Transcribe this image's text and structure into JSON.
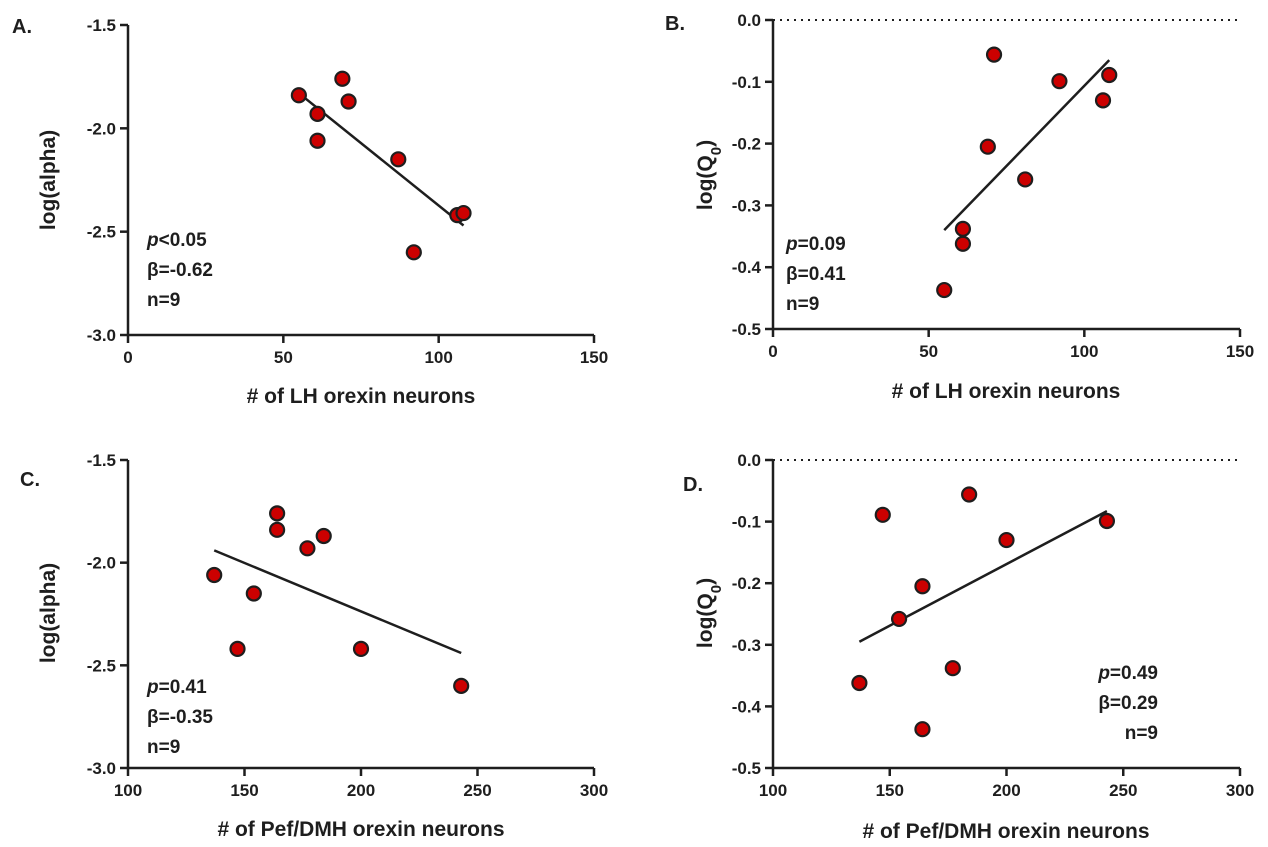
{
  "colors": {
    "point_fill": "#cc0000",
    "point_stroke": "#1e1e1e",
    "ink": "#1e1e1e"
  },
  "chart_data": [
    {
      "type": "scatter",
      "panel": "A.",
      "xlabel": "# of LH orexin neurons",
      "ylabel": "log(alpha)",
      "xlim": [
        0,
        150
      ],
      "ylim": [
        -3.0,
        -1.5
      ],
      "xticks": [
        "0",
        "50",
        "100",
        "150"
      ],
      "yticks": [
        "-1.5",
        "-2.0",
        "-2.5",
        "-3.0"
      ],
      "reference_line": null,
      "points": [
        {
          "x": 55,
          "y": -1.84
        },
        {
          "x": 61,
          "y": -1.93
        },
        {
          "x": 61,
          "y": -2.06
        },
        {
          "x": 69,
          "y": -1.76
        },
        {
          "x": 71,
          "y": -1.87
        },
        {
          "x": 87,
          "y": -2.15
        },
        {
          "x": 92,
          "y": -2.6
        },
        {
          "x": 106,
          "y": -2.42
        },
        {
          "x": 108,
          "y": -2.41
        }
      ],
      "fit_line": [
        {
          "x": 55,
          "y": -1.83
        },
        {
          "x": 108,
          "y": -2.47
        }
      ],
      "stats": {
        "p": "p",
        "p_value": "<0.05",
        "beta": "β=-0.62",
        "n": "n=9"
      },
      "stats_position": "bottom-left"
    },
    {
      "type": "scatter",
      "panel": "B.",
      "xlabel": "# of LH orexin neurons",
      "ylabel": "log(Q",
      "ylabel_sub": "0",
      "ylabel_end": ")",
      "xlim": [
        0,
        150
      ],
      "ylim": [
        -0.5,
        0.0
      ],
      "xticks": [
        "0",
        "50",
        "100",
        "150"
      ],
      "yticks": [
        "0.0",
        "-0.1",
        "-0.2",
        "-0.3",
        "-0.4",
        "-0.5"
      ],
      "reference_line": 0.0,
      "points": [
        {
          "x": 55,
          "y": -0.437
        },
        {
          "x": 61,
          "y": -0.338
        },
        {
          "x": 61,
          "y": -0.362
        },
        {
          "x": 69,
          "y": -0.205
        },
        {
          "x": 71,
          "y": -0.056
        },
        {
          "x": 81,
          "y": -0.258
        },
        {
          "x": 92,
          "y": -0.099
        },
        {
          "x": 106,
          "y": -0.13
        },
        {
          "x": 108,
          "y": -0.089
        }
      ],
      "fit_line": [
        {
          "x": 55,
          "y": -0.34
        },
        {
          "x": 108,
          "y": -0.065
        }
      ],
      "stats": {
        "p": "p",
        "p_value": "=0.09",
        "beta": "β=0.41",
        "n": "n=9"
      },
      "stats_position": "bottom-left"
    },
    {
      "type": "scatter",
      "panel": "C.",
      "xlabel": "# of Pef/DMH orexin neurons",
      "ylabel": "log(alpha)",
      "xlim": [
        100,
        300
      ],
      "ylim": [
        -3.0,
        -1.5
      ],
      "xticks": [
        "100",
        "150",
        "200",
        "250",
        "300"
      ],
      "yticks": [
        "-1.5",
        "-2.0",
        "-2.5",
        "-3.0"
      ],
      "reference_line": null,
      "points": [
        {
          "x": 137,
          "y": -2.06
        },
        {
          "x": 147,
          "y": -2.42
        },
        {
          "x": 154,
          "y": -2.15
        },
        {
          "x": 164,
          "y": -1.76
        },
        {
          "x": 164,
          "y": -1.84
        },
        {
          "x": 177,
          "y": -1.93
        },
        {
          "x": 184,
          "y": -1.87
        },
        {
          "x": 200,
          "y": -2.42
        },
        {
          "x": 243,
          "y": -2.6
        }
      ],
      "fit_line": [
        {
          "x": 137,
          "y": -1.94
        },
        {
          "x": 243,
          "y": -2.44
        }
      ],
      "stats": {
        "p": "p",
        "p_value": "=0.41",
        "beta": "β=-0.35",
        "n": "n=9"
      },
      "stats_position": "bottom-left"
    },
    {
      "type": "scatter",
      "panel": "D.",
      "xlabel": "# of Pef/DMH orexin neurons",
      "ylabel": "log(Q",
      "ylabel_sub": "0",
      "ylabel_end": ")",
      "xlim": [
        100,
        300
      ],
      "ylim": [
        -0.5,
        0.0
      ],
      "xticks": [
        "100",
        "150",
        "200",
        "250",
        "300"
      ],
      "yticks": [
        "0.0",
        "-0.1",
        "-0.2",
        "-0.3",
        "-0.4",
        "-0.5"
      ],
      "reference_line": 0.0,
      "points": [
        {
          "x": 137,
          "y": -0.362
        },
        {
          "x": 147,
          "y": -0.089
        },
        {
          "x": 154,
          "y": -0.258
        },
        {
          "x": 164,
          "y": -0.205
        },
        {
          "x": 164,
          "y": -0.437
        },
        {
          "x": 177,
          "y": -0.338
        },
        {
          "x": 184,
          "y": -0.056
        },
        {
          "x": 200,
          "y": -0.13
        },
        {
          "x": 243,
          "y": -0.099
        }
      ],
      "fit_line": [
        {
          "x": 137,
          "y": -0.295
        },
        {
          "x": 243,
          "y": -0.083
        }
      ],
      "stats": {
        "p": "p",
        "p_value": "=0.49",
        "beta": "β=0.29",
        "n": "n=9"
      },
      "stats_position": "bottom-right"
    }
  ]
}
